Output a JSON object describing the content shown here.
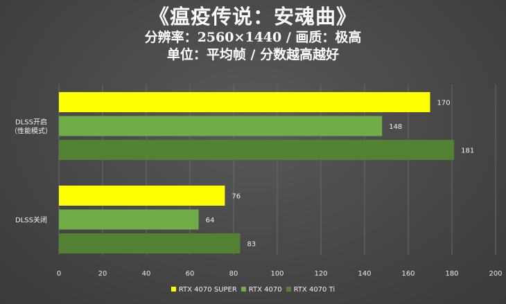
{
  "header": {
    "title": "《瘟疫传说：安魂曲》",
    "subtitle": "分辨率：2560×1440 / 画质：极高",
    "note": "单位：平均帧 / 分数越高越好"
  },
  "colors": {
    "series_1": "#ffff00",
    "series_2": "#70ad47",
    "series_3": "#548235",
    "grid": "#6a6a6a"
  },
  "chart_data": {
    "type": "bar",
    "orientation": "horizontal",
    "title": "《瘟疫传说：安魂曲》",
    "categories": [
      "DLSS开启\n（性能模式）",
      "DLSS关闭"
    ],
    "series": [
      {
        "name": "RTX 4070 SUPER",
        "values": [
          170,
          76
        ]
      },
      {
        "name": "RTX 4070",
        "values": [
          148,
          64
        ]
      },
      {
        "name": "RTX 4070 Ti",
        "values": [
          181,
          83
        ]
      }
    ],
    "xlim": [
      0,
      200
    ],
    "xticks": [
      0,
      20,
      40,
      60,
      80,
      100,
      120,
      140,
      160,
      180,
      200
    ],
    "grid": true,
    "legend": "bottom"
  }
}
